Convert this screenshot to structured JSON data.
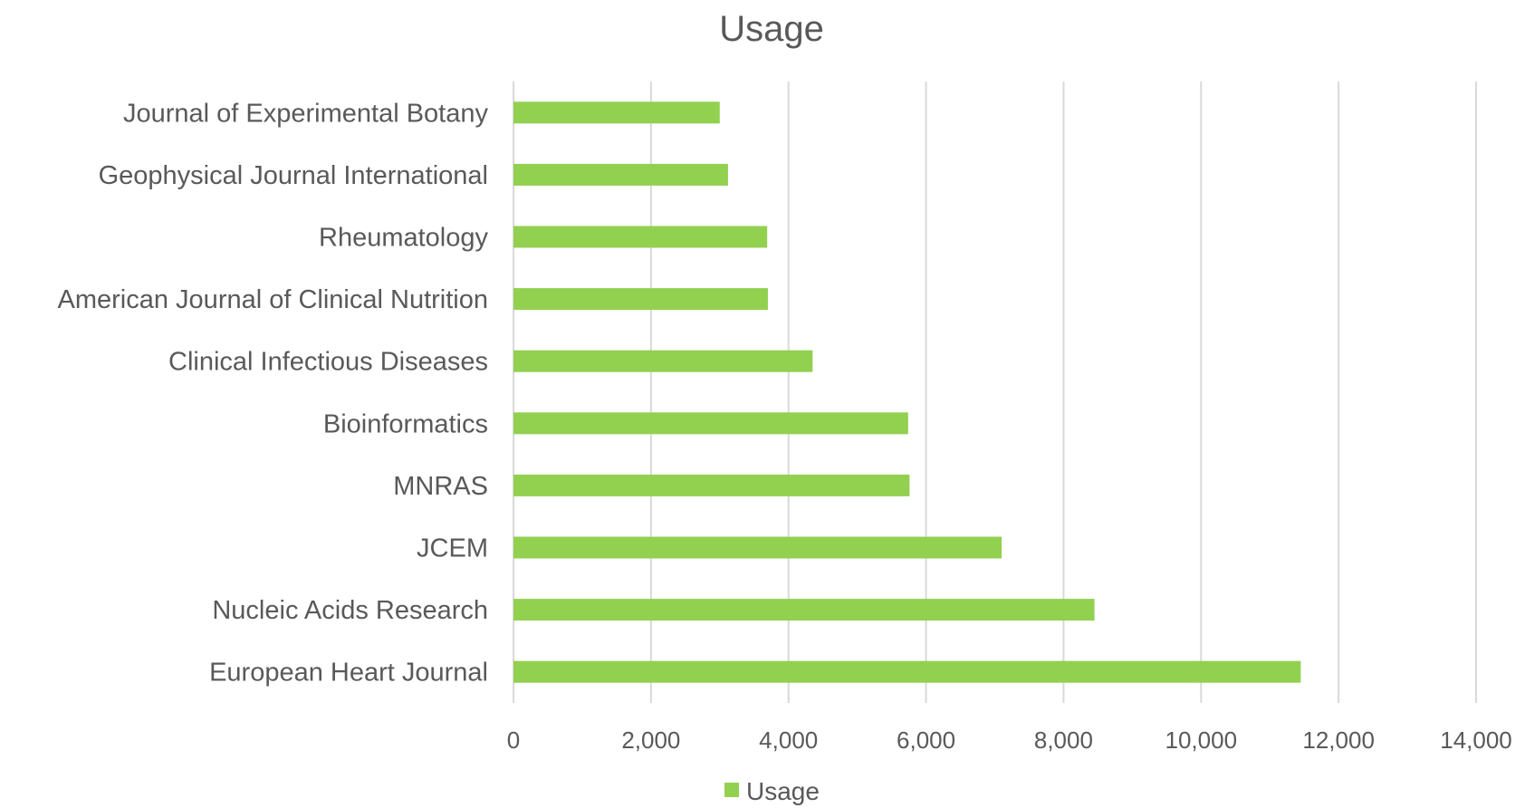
{
  "chart_data": {
    "type": "bar",
    "orientation": "horizontal",
    "title": "Usage",
    "categories": [
      "European Heart Journal",
      "Nucleic Acids Research",
      "JCEM",
      "MNRAS",
      "Bioinformatics",
      "Clinical Infectious Diseases",
      "American Journal of Clinical Nutrition",
      "Rheumatology",
      "Geophysical Journal International",
      "Journal of Experimental Botany"
    ],
    "series": [
      {
        "name": "Usage",
        "color": "#92d050",
        "values": [
          11450,
          8450,
          7100,
          5760,
          5740,
          4350,
          3700,
          3690,
          3120,
          3000
        ]
      }
    ],
    "xlim": [
      0,
      14000
    ],
    "xticks": [
      "0",
      "2,000",
      "4,000",
      "6,000",
      "8,000",
      "10,000",
      "12,000",
      "14,000"
    ],
    "grid": "vertical",
    "legend": "bottom",
    "xlabel": "",
    "ylabel": ""
  }
}
